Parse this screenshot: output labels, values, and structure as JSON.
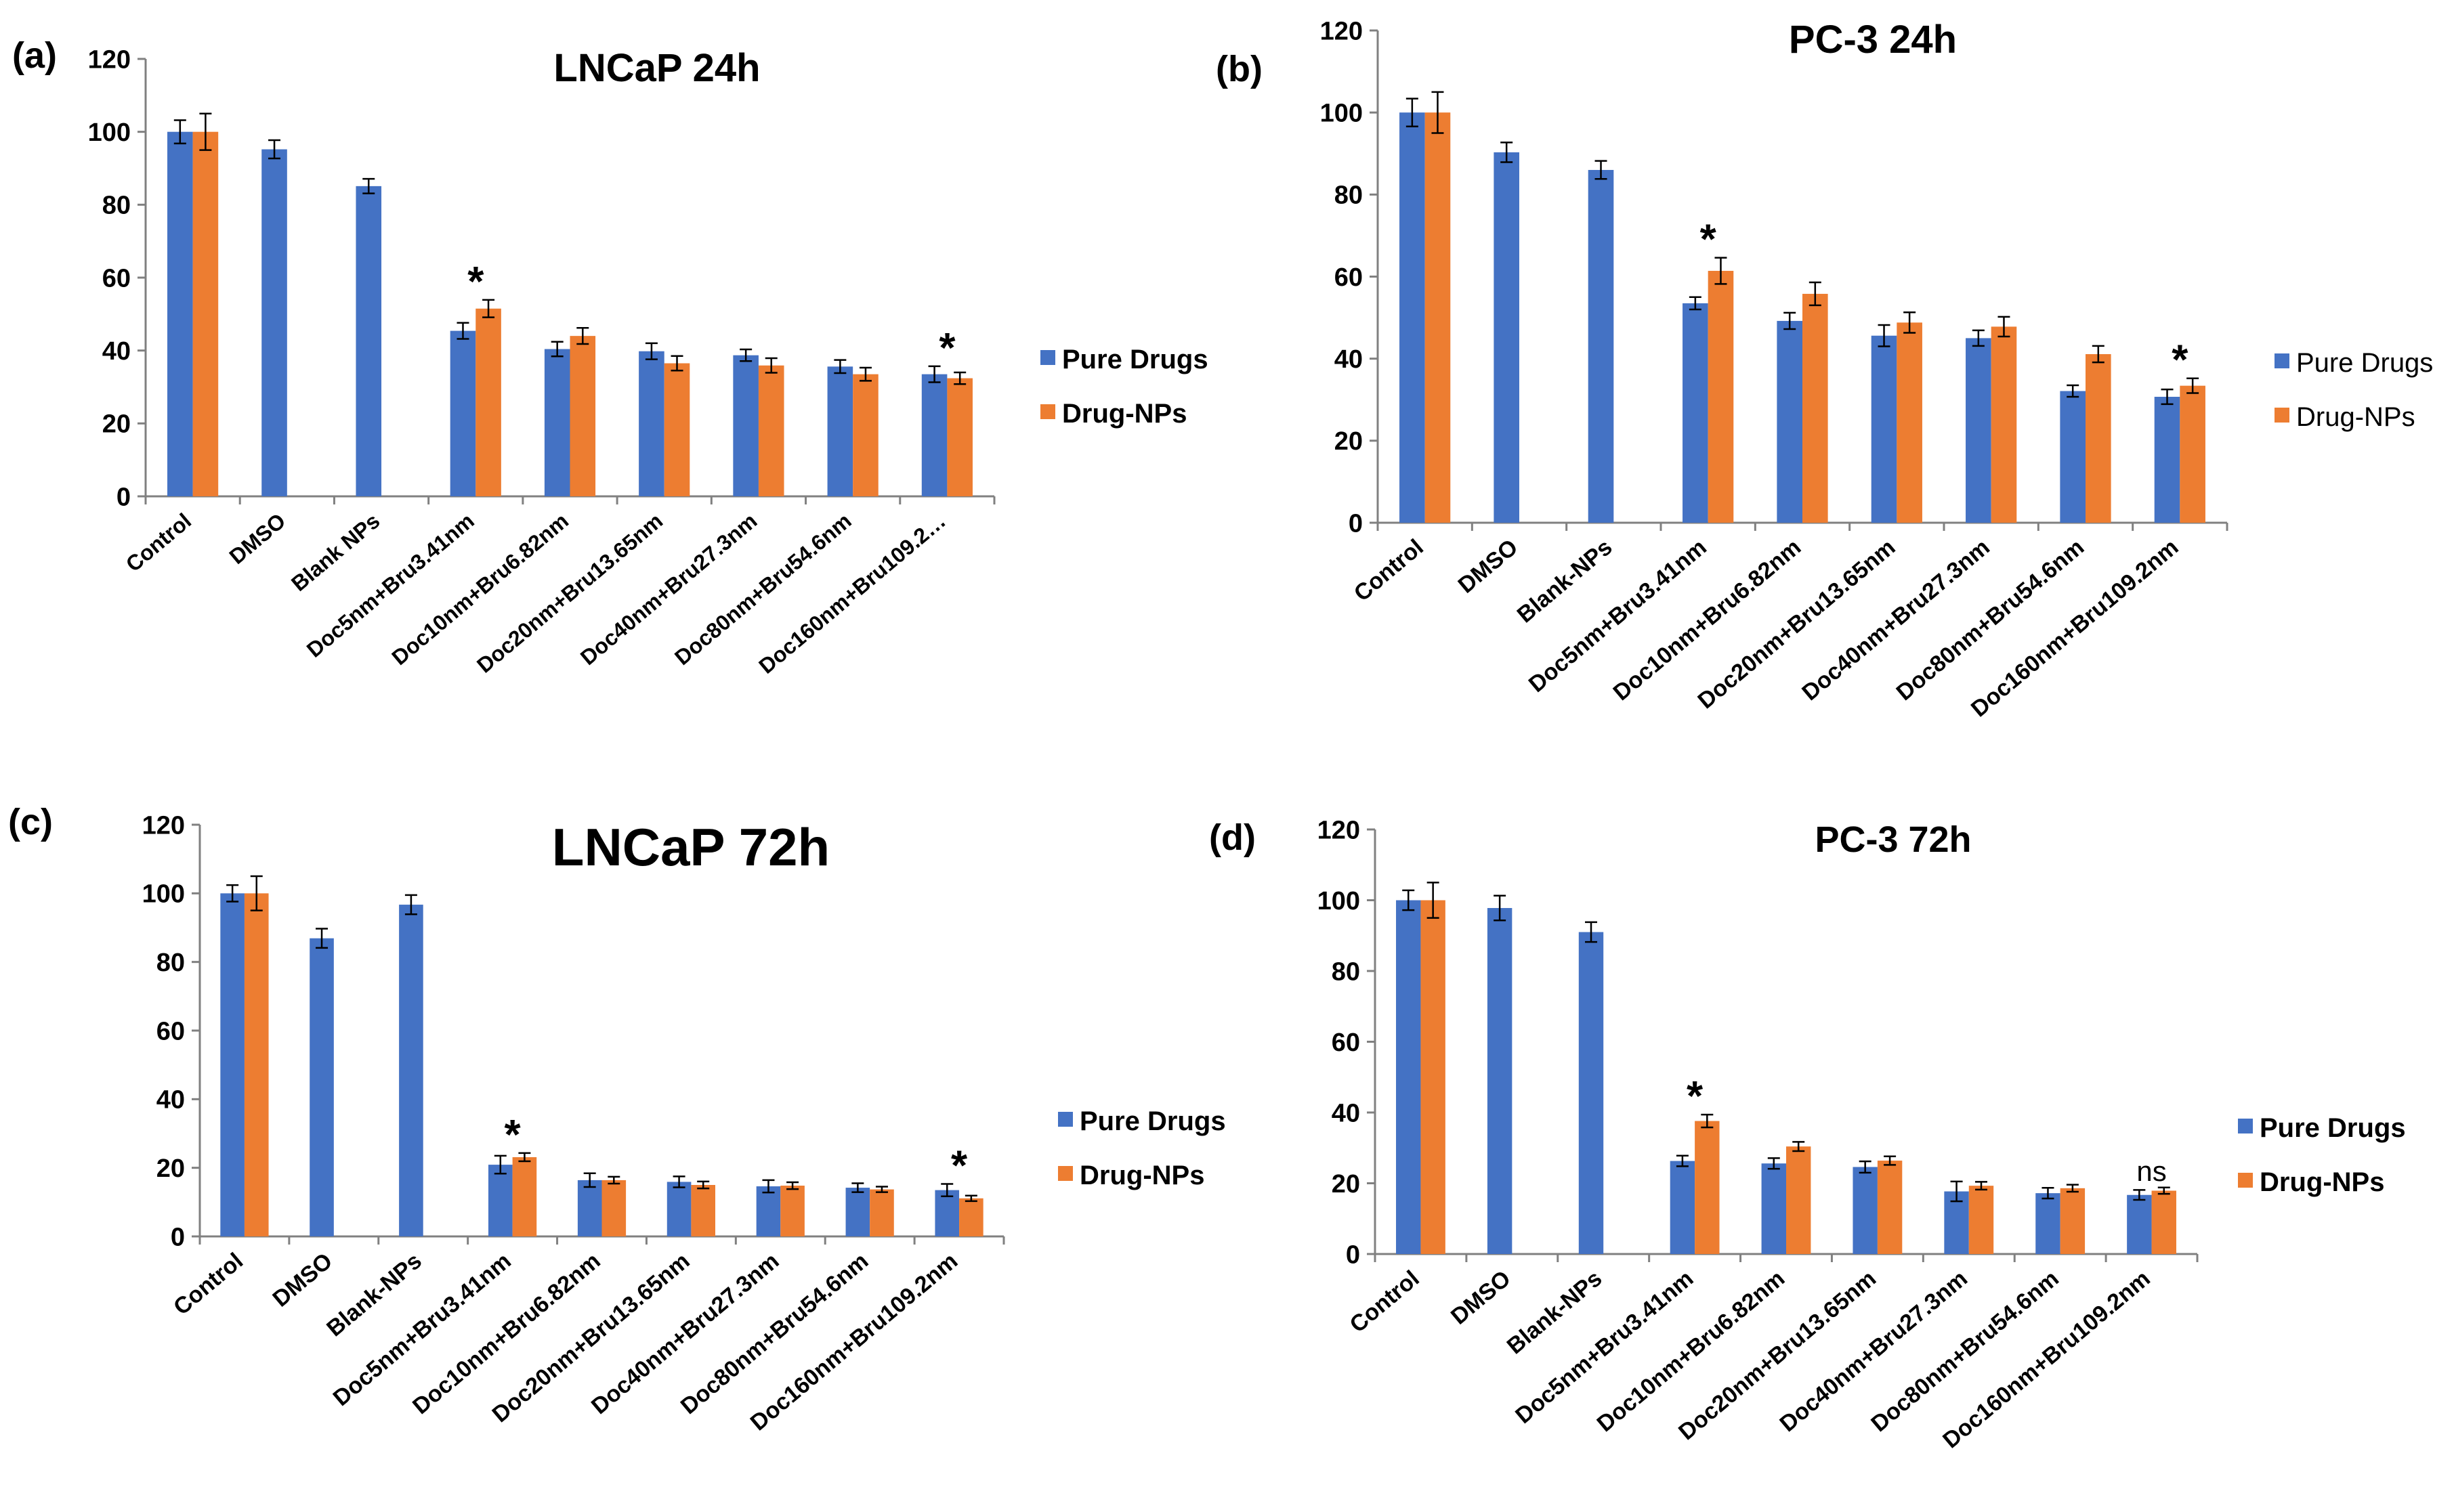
{
  "chart_data": [
    {
      "type": "bar",
      "panel_label": "(a)",
      "title": "LNCaP 24h",
      "ylim": [
        0,
        120
      ],
      "yticks": [
        "0",
        "20",
        "40",
        "60",
        "80",
        "100",
        "120"
      ],
      "legend_position": "right",
      "legend_bold": true,
      "categories": [
        "Control",
        "DMSO",
        "Blank NPs",
        "Doc5nm+Bru3.41nm",
        "Doc10nm+Bru6.82nm",
        "Doc20nm+Bru13.65nm",
        "Doc40nm+Bru27.3nm",
        "Doc80nm+Bru54.6nm",
        "Doc160nm+Bru109.2…"
      ],
      "series": [
        {
          "name": "Pure Drugs",
          "color": "#4472C4",
          "values": [
            100,
            95.2,
            85.1,
            45.4,
            40.4,
            39.8,
            38.7,
            35.6,
            33.5
          ],
          "errors": [
            3.2,
            2.5,
            2.0,
            2.2,
            2.0,
            2.2,
            1.6,
            1.8,
            2.2
          ]
        },
        {
          "name": "Drug-NPs",
          "color": "#ED7D31",
          "values": [
            100,
            null,
            null,
            51.5,
            44.0,
            36.5,
            35.9,
            33.5,
            32.4
          ],
          "errors": [
            5.0,
            null,
            null,
            2.4,
            2.2,
            2.0,
            2.0,
            1.8,
            1.6
          ]
        }
      ],
      "annotations": [
        {
          "text": "*",
          "category_index": 3
        },
        {
          "text": "*",
          "category_index": 8
        }
      ]
    },
    {
      "type": "bar",
      "panel_label": "(b)",
      "title": "PC-3 24h",
      "ylim": [
        0,
        120
      ],
      "yticks": [
        "0",
        "20",
        "40",
        "60",
        "80",
        "100",
        "120"
      ],
      "legend_position": "right",
      "legend_bold": false,
      "categories": [
        "Control",
        "DMSO",
        "Blank-NPs",
        "Doc5nm+Bru3.41nm",
        "Doc10nm+Bru6.82nm",
        "Doc20nm+Bru13.65nm",
        "Doc40nm+Bru27.3nm",
        "Doc80nm+Bru54.6nm",
        "Doc160nm+Bru109.2nm"
      ],
      "series": [
        {
          "name": "Pure Drugs",
          "color": "#4472C4",
          "values": [
            100,
            90.3,
            86.0,
            53.5,
            49.2,
            45.6,
            45.0,
            32.1,
            30.7
          ],
          "errors": [
            3.4,
            2.4,
            2.2,
            1.5,
            2.0,
            2.6,
            1.9,
            1.4,
            1.8
          ]
        },
        {
          "name": "Drug-NPs",
          "color": "#ED7D31",
          "values": [
            100,
            null,
            null,
            61.4,
            55.8,
            48.8,
            47.8,
            41.1,
            33.4
          ],
          "errors": [
            5.0,
            null,
            null,
            3.2,
            2.8,
            2.5,
            2.4,
            2.0,
            1.8
          ]
        }
      ],
      "annotations": [
        {
          "text": "*",
          "category_index": 3
        },
        {
          "text": "*",
          "category_index": 8
        }
      ]
    },
    {
      "type": "bar",
      "panel_label": "(c)",
      "title": "LNCaP 72h",
      "ylim": [
        0,
        120
      ],
      "yticks": [
        "0",
        "20",
        "40",
        "60",
        "80",
        "100",
        "120"
      ],
      "legend_position": "right",
      "legend_bold": true,
      "categories": [
        "Control",
        "DMSO",
        "Blank-NPs",
        "Doc5nm+Bru3.41nm",
        "Doc10nm+Bru6.82nm",
        "Doc20nm+Bru13.65nm",
        "Doc40nm+Bru27.3nm",
        "Doc80nm+Bru54.6nm",
        "Doc160nm+Bru109.2nm"
      ],
      "series": [
        {
          "name": "Pure Drugs",
          "color": "#4472C4",
          "values": [
            100,
            86.9,
            96.7,
            20.9,
            16.4,
            15.9,
            14.6,
            14.2,
            13.5
          ],
          "errors": [
            2.4,
            2.8,
            2.8,
            2.6,
            2.0,
            1.6,
            1.8,
            1.3,
            1.8
          ]
        },
        {
          "name": "Drug-NPs",
          "color": "#ED7D31",
          "values": [
            100,
            null,
            null,
            23.1,
            16.4,
            15.0,
            14.8,
            13.7,
            11.1
          ],
          "errors": [
            5.0,
            null,
            null,
            1.2,
            1.0,
            1.0,
            1.0,
            0.8,
            0.8
          ]
        }
      ],
      "annotations": [
        {
          "text": "*",
          "category_index": 3
        },
        {
          "text": "*",
          "category_index": 8
        }
      ]
    },
    {
      "type": "bar",
      "panel_label": "(d)",
      "title": "PC-3 72h",
      "ylim": [
        0,
        120
      ],
      "yticks": [
        "0",
        "20",
        "40",
        "60",
        "80",
        "100",
        "120"
      ],
      "legend_position": "right",
      "legend_bold": true,
      "categories": [
        "Control",
        "DMSO",
        "Blank-NPs",
        "Doc5nm+Bru3.41nm",
        "Doc10nm+Bru6.82nm",
        "Doc20nm+Bru13.65nm",
        "Doc40nm+Bru27.3nm",
        "Doc80nm+Bru54.6nm",
        "Doc160nm+Bru109.2nm"
      ],
      "series": [
        {
          "name": "Pure Drugs",
          "color": "#4472C4",
          "values": [
            100,
            97.8,
            91.0,
            26.3,
            25.6,
            24.6,
            17.7,
            17.2,
            16.7
          ],
          "errors": [
            2.8,
            3.5,
            2.8,
            1.5,
            1.5,
            1.6,
            2.8,
            1.5,
            1.4
          ]
        },
        {
          "name": "Drug-NPs",
          "color": "#ED7D31",
          "values": [
            100,
            null,
            null,
            37.6,
            30.4,
            26.4,
            19.3,
            18.6,
            17.9
          ],
          "errors": [
            5.0,
            null,
            null,
            1.8,
            1.3,
            1.2,
            1.1,
            1.0,
            0.9
          ]
        }
      ],
      "annotations": [
        {
          "text": "*",
          "category_index": 3
        },
        {
          "text": "ns",
          "category_index": 8
        }
      ]
    }
  ]
}
